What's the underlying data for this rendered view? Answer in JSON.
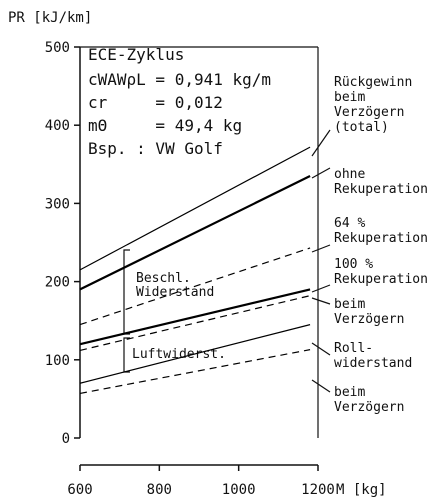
{
  "chart_data": {
    "type": "line",
    "ylabel": "PR [kJ/km]",
    "xlabel": "M [kg]",
    "info": [
      "ECE-Zyklus",
      "cWAWρL = 0,941 kg/m",
      "cr     = 0,012",
      "mΘ     = 49,4 kg",
      "Bsp. : VW Golf"
    ],
    "annotations": [
      "Beschl.\nWiderstand",
      "Luftwiderst."
    ],
    "x": [
      600,
      1180
    ],
    "xlim": [
      600,
      1200
    ],
    "xticks": [
      600,
      800,
      1000,
      1200
    ],
    "ylim": [
      0,
      500
    ],
    "yticks": [
      0,
      100,
      200,
      300,
      400,
      500
    ],
    "series": [
      {
        "name": "Rückgewinn\nbeim\nVerzögern\n(total)",
        "color": "#000000",
        "dash": false,
        "width": 1.2,
        "values": [
          215,
          372
        ]
      },
      {
        "name": "ohne\nRekuperation",
        "color": "#000000",
        "dash": false,
        "width": 2.2,
        "values": [
          190,
          335
        ]
      },
      {
        "name": "64 %\nRekuperation",
        "color": "#000000",
        "dash": true,
        "width": 1.2,
        "values": [
          145,
          243
        ]
      },
      {
        "name": "100 %\nRekuperation",
        "color": "#000000",
        "dash": false,
        "width": 2.2,
        "values": [
          120,
          190
        ]
      },
      {
        "name": "beim\nVerzögern",
        "color": "#000000",
        "dash": true,
        "width": 1.2,
        "values": [
          112,
          182
        ]
      },
      {
        "name": "Roll-\nwiderstand",
        "color": "#000000",
        "dash": false,
        "width": 1.2,
        "values": [
          70,
          145
        ]
      },
      {
        "name": "beim\nVerzögern",
        "color": "#000000",
        "dash": true,
        "width": 1.2,
        "values": [
          57,
          113
        ]
      }
    ]
  }
}
